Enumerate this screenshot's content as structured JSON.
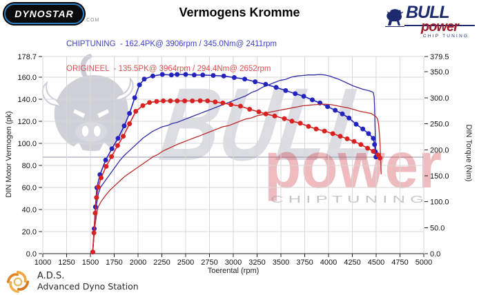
{
  "header": {
    "title": "Vermogens Kromme",
    "dynostar_logo": {
      "text": "DYNOSTAR",
      "suffix": ".COM"
    },
    "bullpower_logo": {
      "bull": "BULL",
      "power": "power",
      "tagline": "CHIP TUNING"
    },
    "legend": [
      {
        "name": "CHIPTUNING",
        "text": "CHIPTUNING  - 162.4PK@ 3906rpm / 345.0Nm@ 2411rpm",
        "color": "#4040cc"
      },
      {
        "name": "ORIGINEEL",
        "text": "ORIGINEEL  - 135.5PK@ 3964rpm / 294.4Nm@ 2652rpm",
        "color": "#e04e4e"
      }
    ]
  },
  "footer": {
    "abbr": "A.D.S.",
    "name": "Advanced Dyno Station"
  },
  "watermark": {
    "bull_text": "BULL",
    "power_text": "power",
    "tagline": "C H I P   T U N I N G"
  },
  "chart_data": {
    "type": "line",
    "title": "Vermogens Kromme",
    "xlabel": "Toerental (rpm)",
    "ylabel_left": "DIN Motor Vermogen (pk)",
    "ylabel_right": "DIN Torque (Nm)",
    "xlim": [
      1000,
      5000
    ],
    "ylim_left": [
      0,
      178.7
    ],
    "ylim_right": [
      0,
      379.5
    ],
    "grid": true,
    "x_ticks": [
      1000,
      1250,
      1500,
      1750,
      2000,
      2250,
      2500,
      2750,
      3000,
      3250,
      3500,
      3750,
      4000,
      4250,
      4500,
      4750,
      5000
    ],
    "y_ticks_left": [
      178.7,
      160.0,
      140.0,
      120.0,
      100.0,
      80.0,
      60.0,
      40.0,
      20.0,
      0.0
    ],
    "y_ticks_right": [
      379.5,
      350.0,
      300.0,
      250.0,
      200.0,
      150.0,
      100.0,
      50.0,
      0.0
    ],
    "series": [
      {
        "name": "chiptuning-power",
        "unit": "pk",
        "axis": "left",
        "color": "#2b2ba6",
        "markers": false,
        "peak": "162.4PK@3906rpm",
        "points": [
          [
            1525,
            2
          ],
          [
            1537,
            18
          ],
          [
            1550,
            32
          ],
          [
            1565,
            45
          ],
          [
            1582,
            54
          ],
          [
            1605,
            60
          ],
          [
            1655,
            66
          ],
          [
            1705,
            72
          ],
          [
            1755,
            78
          ],
          [
            1805,
            84
          ],
          [
            1855,
            89
          ],
          [
            1905,
            93
          ],
          [
            1955,
            97
          ],
          [
            2005,
            101
          ],
          [
            2055,
            105
          ],
          [
            2105,
            108
          ],
          [
            2155,
            111
          ],
          [
            2205,
            113
          ],
          [
            2255,
            115
          ],
          [
            2305,
            116
          ],
          [
            2360,
            118
          ],
          [
            2411,
            119
          ],
          [
            2470,
            121
          ],
          [
            2530,
            123
          ],
          [
            2590,
            125
          ],
          [
            2650,
            127
          ],
          [
            2710,
            129
          ],
          [
            2770,
            131
          ],
          [
            2830,
            133
          ],
          [
            2890,
            135
          ],
          [
            2950,
            137
          ],
          [
            3010,
            139
          ],
          [
            3070,
            141
          ],
          [
            3130,
            143
          ],
          [
            3190,
            146
          ],
          [
            3250,
            148
          ],
          [
            3310,
            151
          ],
          [
            3370,
            153
          ],
          [
            3430,
            155
          ],
          [
            3490,
            157
          ],
          [
            3550,
            158
          ],
          [
            3610,
            160
          ],
          [
            3670,
            161
          ],
          [
            3730,
            161.5
          ],
          [
            3790,
            162
          ],
          [
            3850,
            162
          ],
          [
            3906,
            162.4
          ],
          [
            3960,
            162
          ],
          [
            4010,
            161
          ],
          [
            4060,
            159.5
          ],
          [
            4110,
            158
          ],
          [
            4160,
            156
          ],
          [
            4210,
            154
          ],
          [
            4260,
            152
          ],
          [
            4310,
            150.5
          ],
          [
            4360,
            149
          ],
          [
            4410,
            148
          ],
          [
            4450,
            147
          ],
          [
            4470,
            146
          ],
          [
            4479,
            142
          ],
          [
            4484,
            131
          ],
          [
            4488,
            117
          ],
          [
            4492,
            102
          ],
          [
            4495,
            91
          ]
        ]
      },
      {
        "name": "chiptuning-torque",
        "unit": "Nm",
        "axis": "right",
        "color": "#2323bd",
        "markers": true,
        "peak": "345.0Nm@2411rpm",
        "points": [
          [
            1525,
            3
          ],
          [
            1540,
            48
          ],
          [
            1553,
            90
          ],
          [
            1568,
            127
          ],
          [
            1600,
            152
          ],
          [
            1660,
            180
          ],
          [
            1725,
            202
          ],
          [
            1790,
            222
          ],
          [
            1855,
            246
          ],
          [
            1910,
            270
          ],
          [
            1965,
            300
          ],
          [
            2015,
            325
          ],
          [
            2065,
            336
          ],
          [
            2155,
            342
          ],
          [
            2255,
            345
          ],
          [
            2350,
            344
          ],
          [
            2411,
            345
          ],
          [
            2500,
            345
          ],
          [
            2590,
            344
          ],
          [
            2680,
            344
          ],
          [
            2790,
            343
          ],
          [
            2900,
            342
          ],
          [
            3010,
            339
          ],
          [
            3120,
            336
          ],
          [
            3230,
            331
          ],
          [
            3340,
            326
          ],
          [
            3450,
            320
          ],
          [
            3550,
            314
          ],
          [
            3650,
            308
          ],
          [
            3740,
            303
          ],
          [
            3830,
            296
          ],
          [
            3910,
            290
          ],
          [
            3990,
            283
          ],
          [
            4070,
            276
          ],
          [
            4145,
            269
          ],
          [
            4215,
            261
          ],
          [
            4290,
            249
          ],
          [
            4360,
            240
          ],
          [
            4420,
            231
          ],
          [
            4470,
            222
          ],
          [
            4483,
            210
          ],
          [
            4492,
            196
          ],
          [
            4497,
            186
          ]
        ]
      },
      {
        "name": "origineel-power",
        "unit": "pk",
        "axis": "left",
        "color": "#bb2a2a",
        "markers": false,
        "peak": "135.5PK@3964rpm",
        "points": [
          [
            1525,
            2
          ],
          [
            1536,
            14
          ],
          [
            1548,
            25
          ],
          [
            1562,
            34
          ],
          [
            1580,
            42
          ],
          [
            1610,
            47
          ],
          [
            1660,
            53
          ],
          [
            1710,
            58
          ],
          [
            1760,
            62
          ],
          [
            1810,
            66
          ],
          [
            1860,
            70
          ],
          [
            1910,
            73
          ],
          [
            1960,
            76
          ],
          [
            2010,
            79
          ],
          [
            2060,
            82
          ],
          [
            2110,
            85
          ],
          [
            2160,
            88
          ],
          [
            2210,
            90
          ],
          [
            2260,
            93
          ],
          [
            2310,
            95
          ],
          [
            2360,
            97
          ],
          [
            2411,
            99
          ],
          [
            2470,
            101
          ],
          [
            2530,
            103
          ],
          [
            2590,
            105
          ],
          [
            2652,
            107
          ],
          [
            2710,
            109
          ],
          [
            2770,
            111
          ],
          [
            2830,
            113
          ],
          [
            2890,
            115
          ],
          [
            2950,
            116
          ],
          [
            3010,
            118
          ],
          [
            3070,
            120
          ],
          [
            3130,
            122
          ],
          [
            3190,
            123
          ],
          [
            3250,
            125
          ],
          [
            3310,
            126
          ],
          [
            3370,
            128
          ],
          [
            3430,
            129
          ],
          [
            3490,
            130
          ],
          [
            3550,
            131
          ],
          [
            3610,
            132
          ],
          [
            3670,
            133
          ],
          [
            3730,
            134
          ],
          [
            3790,
            134.5
          ],
          [
            3850,
            135
          ],
          [
            3964,
            135.5
          ],
          [
            4030,
            135
          ],
          [
            4090,
            134
          ],
          [
            4150,
            133
          ],
          [
            4210,
            132
          ],
          [
            4270,
            130.5
          ],
          [
            4330,
            129
          ],
          [
            4390,
            128
          ],
          [
            4450,
            127
          ],
          [
            4500,
            124
          ],
          [
            4515,
            122
          ],
          [
            4526,
            117
          ],
          [
            4535,
            108
          ],
          [
            4542,
            97
          ],
          [
            4548,
            84
          ],
          [
            4553,
            72
          ]
        ]
      },
      {
        "name": "origineel-torque",
        "unit": "Nm",
        "axis": "right",
        "color": "#d82222",
        "markers": true,
        "peak": "294.4Nm@2652rpm",
        "points": [
          [
            1525,
            3
          ],
          [
            1537,
            40
          ],
          [
            1550,
            78
          ],
          [
            1564,
            108
          ],
          [
            1582,
            128
          ],
          [
            1612,
            146
          ],
          [
            1665,
            168
          ],
          [
            1722,
            187
          ],
          [
            1785,
            208
          ],
          [
            1845,
            226
          ],
          [
            1910,
            250
          ],
          [
            1976,
            274
          ],
          [
            2050,
            285
          ],
          [
            2120,
            291
          ],
          [
            2195,
            293
          ],
          [
            2265,
            294
          ],
          [
            2340,
            294
          ],
          [
            2411,
            294
          ],
          [
            2490,
            294
          ],
          [
            2570,
            294
          ],
          [
            2652,
            294.4
          ],
          [
            2730,
            294
          ],
          [
            2810,
            292
          ],
          [
            2890,
            290
          ],
          [
            2975,
            287
          ],
          [
            3075,
            284
          ],
          [
            3172,
            278
          ],
          [
            3268,
            273
          ],
          [
            3341,
            269
          ],
          [
            3435,
            265
          ],
          [
            3536,
            260
          ],
          [
            3616,
            255
          ],
          [
            3703,
            251
          ],
          [
            3790,
            245
          ],
          [
            3870,
            240
          ],
          [
            3957,
            236
          ],
          [
            4044,
            231
          ],
          [
            4123,
            226
          ],
          [
            4196,
            221
          ],
          [
            4268,
            216
          ],
          [
            4340,
            210
          ],
          [
            4410,
            203
          ],
          [
            4470,
            197
          ],
          [
            4520,
            190
          ],
          [
            4540,
            184
          ]
        ]
      }
    ]
  }
}
